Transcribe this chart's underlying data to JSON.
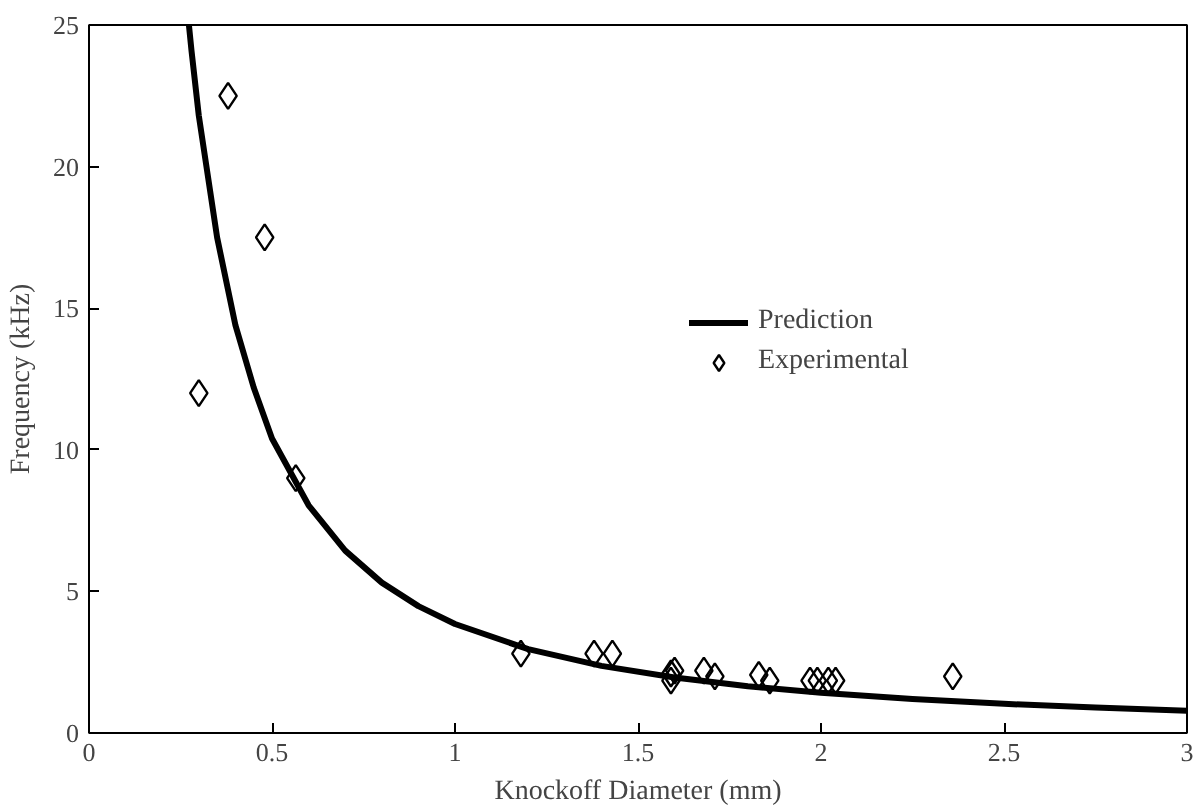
{
  "chart_data": {
    "type": "scatter",
    "xlabel": "Knockoff Diameter (mm)",
    "ylabel": "Frequency (kHz)",
    "xlim": [
      0,
      3
    ],
    "xticks": [
      0,
      0.5,
      1,
      1.5,
      2,
      2.5,
      3
    ],
    "ylim": [
      0,
      25
    ],
    "yticks": [
      0,
      5,
      10,
      15,
      20,
      25
    ],
    "grid": false,
    "legend": "center",
    "marker": "diamond",
    "series": [
      {
        "name": "Prediction",
        "type": "line",
        "color": "#000000",
        "line_style": "solid",
        "marker": "none",
        "x": [
          0.273,
          0.28,
          0.3,
          0.35,
          0.4,
          0.45,
          0.5,
          0.6,
          0.7,
          0.8,
          0.9,
          1.0,
          1.2,
          1.4,
          1.6,
          1.8,
          2.0,
          2.25,
          2.5,
          2.75,
          3.0
        ],
        "values": [
          25.0,
          24.1,
          21.8,
          17.5,
          14.4,
          12.2,
          10.4,
          8.04,
          6.44,
          5.31,
          4.48,
          3.85,
          2.96,
          2.37,
          1.96,
          1.65,
          1.42,
          1.2,
          1.03,
          0.9,
          0.79
        ]
      },
      {
        "name": "Experimental",
        "color": "#000000",
        "x": [
          0.3,
          0.38,
          0.48,
          0.565,
          1.18,
          1.38,
          1.43,
          1.59,
          1.6,
          1.59,
          1.68,
          1.71,
          1.83,
          1.86,
          1.97,
          1.99,
          2.02,
          2.04,
          2.36
        ],
        "values": [
          12.0,
          22.5,
          17.5,
          9.0,
          2.8,
          2.8,
          2.8,
          2.1,
          2.2,
          1.85,
          2.2,
          2.0,
          2.05,
          1.85,
          1.85,
          1.85,
          1.85,
          1.85,
          2.0
        ]
      }
    ]
  }
}
